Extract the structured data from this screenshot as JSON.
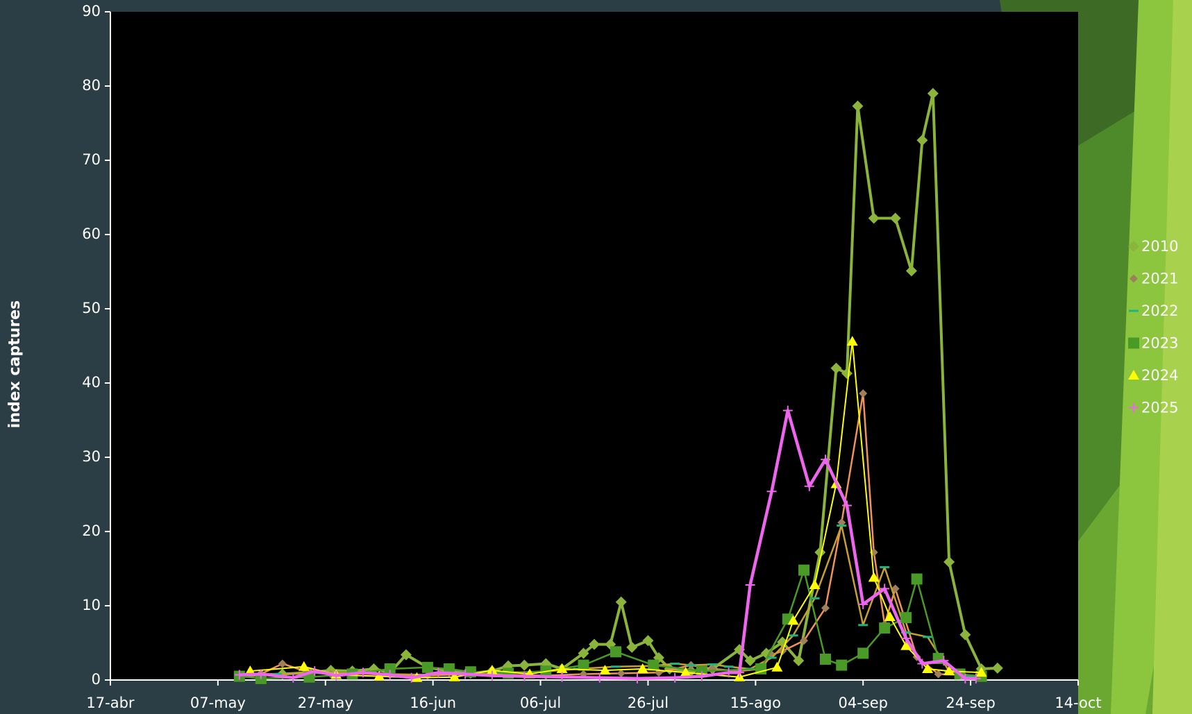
{
  "chart_data": {
    "type": "line",
    "y_label": "index captures",
    "xlim": [
      0,
      180
    ],
    "xticks": [
      {
        "value": 0,
        "label": "17-abr"
      },
      {
        "value": 20,
        "label": "07-may"
      },
      {
        "value": 40,
        "label": "27-may"
      },
      {
        "value": 60,
        "label": "16-jun"
      },
      {
        "value": 80,
        "label": "06-jul"
      },
      {
        "value": 100,
        "label": "26-jul"
      },
      {
        "value": 120,
        "label": "15-ago"
      },
      {
        "value": 140,
        "label": "04-sep"
      },
      {
        "value": 160,
        "label": "24-sep"
      },
      {
        "value": 180,
        "label": "14-oct"
      }
    ],
    "ylim": [
      0,
      90
    ],
    "yticks": [
      0,
      10,
      20,
      30,
      40,
      50,
      60,
      70,
      80,
      90
    ],
    "grid": false,
    "legend": "right",
    "series": [
      {
        "name": "2010",
        "color": "#8ab43a",
        "marker_color": "#8ab43a",
        "marker": "diamond",
        "line_width": 4,
        "x": [
          24,
          28,
          32,
          37,
          41,
          45,
          49,
          52,
          55,
          59,
          63,
          67,
          71,
          74,
          77,
          81,
          84,
          88,
          90,
          93,
          95,
          97,
          100,
          102,
          104,
          108,
          112,
          117,
          119,
          122,
          125,
          128,
          132,
          135,
          137,
          139,
          142,
          146,
          149,
          151,
          153,
          156,
          159,
          162,
          165
        ],
        "values": [
          0.5,
          0.7,
          0.8,
          1.0,
          1.3,
          1.2,
          1.5,
          1.0,
          3.4,
          1.7,
          1.2,
          0.9,
          1.2,
          1.9,
          2.0,
          2.2,
          1.5,
          3.6,
          4.8,
          4.8,
          10.5,
          4.4,
          5.3,
          3.0,
          1.5,
          1.2,
          1.5,
          4.1,
          2.6,
          3.6,
          5.1,
          2.6,
          17.2,
          42.0,
          41.3,
          77.3,
          62.2,
          62.2,
          55.1,
          72.7,
          79.0,
          15.9,
          6.1,
          1.5,
          1.6
        ]
      },
      {
        "name": "2021",
        "color": "#f0935a",
        "marker_color": "#a0805a",
        "marker": "diamond-small",
        "line_width": 2.5,
        "x": [
          24,
          28,
          32,
          37,
          41,
          45,
          52,
          59,
          67,
          74,
          81,
          88,
          95,
          102,
          108,
          112,
          117,
          121,
          123,
          125,
          129,
          133,
          136,
          140,
          142,
          144,
          146,
          150,
          154,
          158
        ],
        "values": [
          0.6,
          0.8,
          2.2,
          1.0,
          0.8,
          0.9,
          0.7,
          0.6,
          0.8,
          0.7,
          0.6,
          0.8,
          0.9,
          1.0,
          2.0,
          1.5,
          1.2,
          1.5,
          3.4,
          3.9,
          5.3,
          9.7,
          21.2,
          38.6,
          17.2,
          7.5,
          12.3,
          3.1,
          0.8,
          0.7
        ]
      },
      {
        "name": "2022",
        "color": "#c8a030",
        "marker_color": "#1fb57f",
        "marker": "dash",
        "line_width": 2.5,
        "x": [
          24,
          31,
          38,
          45,
          52,
          59,
          66,
          73,
          80,
          87,
          94,
          101,
          105,
          108,
          112,
          115,
          119,
          123,
          127,
          131,
          136,
          140,
          144,
          148,
          152,
          156,
          160
        ],
        "values": [
          0.5,
          0.8,
          1.0,
          0.9,
          0.8,
          0.7,
          0.9,
          1.0,
          1.1,
          1.5,
          1.8,
          1.9,
          2.2,
          2.0,
          2.1,
          1.8,
          1.5,
          3.0,
          6.0,
          11.0,
          20.8,
          7.4,
          15.2,
          6.4,
          5.8,
          1.2,
          0.5
        ]
      },
      {
        "name": "2023",
        "color": "#4a9a28",
        "marker_color": "#4a9a28",
        "marker": "square",
        "line_width": 2.5,
        "x": [
          24,
          28,
          37,
          45,
          52,
          59,
          63,
          67,
          74,
          81,
          88,
          94,
          101,
          110,
          121,
          126,
          129,
          133,
          136,
          140,
          144,
          148,
          150,
          154,
          158,
          162
        ],
        "values": [
          0.5,
          0.2,
          0.4,
          0.8,
          1.5,
          1.7,
          1.5,
          1.1,
          0.9,
          1.2,
          2.0,
          3.8,
          2.0,
          1.2,
          1.5,
          8.2,
          14.8,
          2.8,
          2.0,
          3.6,
          7.0,
          8.4,
          13.6,
          2.9,
          0.8,
          0.5
        ]
      },
      {
        "name": "2024",
        "color": "#ffff00",
        "marker_color": "#ffff00",
        "marker": "triangle",
        "line_width": 2,
        "x": [
          26,
          36,
          42,
          50,
          57,
          64,
          71,
          78,
          84,
          92,
          99,
          107,
          117,
          124,
          127,
          131,
          135,
          138,
          142,
          145,
          148,
          152,
          156,
          162
        ],
        "values": [
          1.2,
          1.8,
          0.7,
          0.5,
          0.3,
          0.4,
          1.3,
          0.8,
          1.5,
          1.3,
          1.5,
          1.0,
          0.4,
          1.7,
          8.0,
          12.8,
          26.4,
          45.6,
          13.8,
          8.5,
          4.6,
          1.5,
          1.2,
          1.0
        ]
      },
      {
        "name": "2025",
        "color": "#ee66ee",
        "marker_color": "#ee66ee",
        "marker": "plus",
        "line_width": 4.5,
        "x": [
          24,
          28,
          34,
          38,
          42,
          47,
          52,
          56,
          61,
          66,
          71,
          77,
          84,
          91,
          98,
          105,
          110,
          115,
          117,
          119,
          123,
          126,
          130,
          133,
          137,
          140,
          144,
          148,
          151,
          155,
          159,
          161
        ],
        "values": [
          0.7,
          0.8,
          0.3,
          1.2,
          0.6,
          1.0,
          0.7,
          0.3,
          1.0,
          0.8,
          0.6,
          0.5,
          0.4,
          0.3,
          0.2,
          0.3,
          0.5,
          1.0,
          1.0,
          12.8,
          25.4,
          36.3,
          26.1,
          29.7,
          23.5,
          10.2,
          12.3,
          5.6,
          2.2,
          2.6,
          0.2,
          0.2
        ]
      }
    ]
  }
}
